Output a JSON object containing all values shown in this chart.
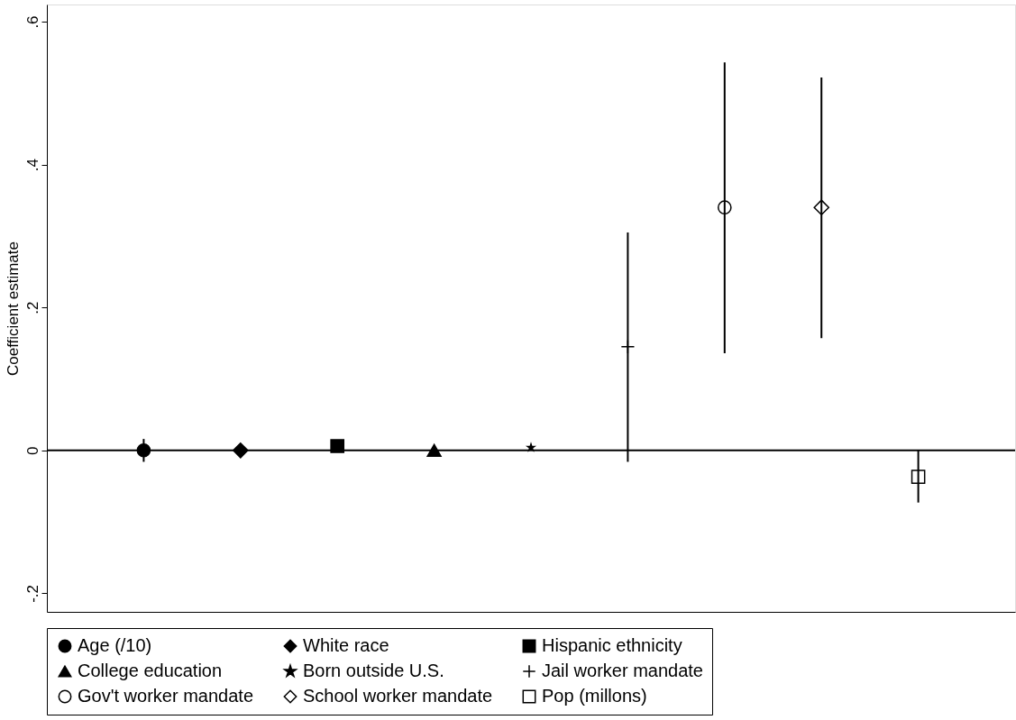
{
  "chart_data": {
    "type": "scatter",
    "ylabel": "Coefficient estimate",
    "categories": [
      null,
      null,
      null,
      null,
      null,
      null,
      null,
      null,
      null
    ],
    "series": [
      {
        "name": "Age (/10)",
        "color": "#000000",
        "marker": "circle",
        "values": [
          0,
          null,
          null,
          null,
          null,
          null,
          null,
          null,
          null
        ],
        "errors": [
          0.016,
          null,
          null,
          null,
          null,
          null,
          null,
          null,
          null
        ]
      },
      {
        "name": "White race",
        "color": "#000000",
        "marker": "diamond",
        "values": [
          null,
          0,
          null,
          null,
          null,
          null,
          null,
          null,
          null
        ]
      },
      {
        "name": "Hispanic ethnicity",
        "color": "#000000",
        "marker": "square",
        "values": [
          null,
          null,
          0.006,
          null,
          null,
          null,
          null,
          null,
          null
        ]
      },
      {
        "name": "College education",
        "color": "#000000",
        "marker": "triangle",
        "values": [
          null,
          null,
          null,
          0,
          null,
          null,
          null,
          null,
          null
        ]
      },
      {
        "name": "Born outside U.S.",
        "color": "#000000",
        "marker": "star",
        "values": [
          null,
          null,
          null,
          null,
          0.004,
          null,
          null,
          null,
          null
        ]
      },
      {
        "name": "Jail worker mandate",
        "color": "#000000",
        "marker": "cross",
        "values": [
          null,
          null,
          null,
          null,
          null,
          0.145,
          null,
          null,
          null
        ],
        "errors": [
          null,
          null,
          null,
          null,
          null,
          [
            -0.016,
            0.305
          ],
          null,
          null,
          null
        ]
      },
      {
        "name": "Gov't worker mandate",
        "color": "#000000",
        "marker": "circle",
        "values": [
          null,
          null,
          null,
          null,
          null,
          null,
          0.34,
          null,
          null
        ],
        "errors": [
          null,
          null,
          null,
          null,
          null,
          null,
          [
            0.136,
            0.543
          ],
          null,
          null
        ]
      },
      {
        "name": "School worker mandate",
        "color": "#000000",
        "marker": "diamond",
        "values": [
          null,
          null,
          null,
          null,
          null,
          null,
          null,
          0.34,
          null
        ],
        "errors": [
          null,
          null,
          null,
          null,
          null,
          null,
          null,
          [
            0.157,
            0.522
          ],
          null
        ]
      },
      {
        "name": "Pop (millons)",
        "color": "#000000",
        "marker": "square",
        "values": [
          null,
          null,
          null,
          null,
          null,
          null,
          null,
          null,
          -0.037
        ],
        "errors": [
          null,
          null,
          null,
          null,
          null,
          null,
          null,
          null,
          [
            -0.073,
            0
          ]
        ]
      }
    ],
    "ylim": [
      -0.226,
      0.624
    ],
    "yticks": [
      {
        "value": -0.2,
        "label": "-.2"
      },
      {
        "value": 0,
        "label": "0"
      },
      {
        "value": 0.2,
        "label": ".2"
      },
      {
        "value": 0.4,
        "label": ".4"
      },
      {
        "value": 0.6,
        "label": ".6"
      }
    ],
    "ref_lines": [
      {
        "axis": "y",
        "value": 0,
        "color": "#000000"
      }
    ],
    "legend": "bottom",
    "grid": false,
    "tick_labels": "y"
  }
}
